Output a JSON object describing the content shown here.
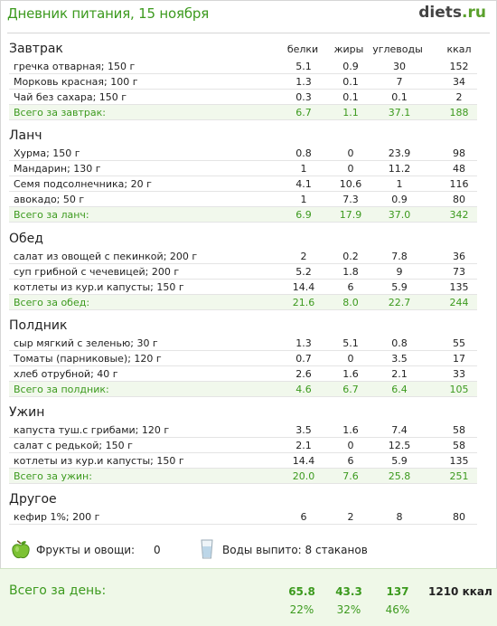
{
  "header": {
    "title": "Дневник питания, 15 ноября",
    "brand_name": "diets",
    "brand_tld": ".ru"
  },
  "columns": [
    "белки",
    "жиры",
    "углеводы",
    "ккал"
  ],
  "sections": [
    {
      "title": "Завтрак",
      "items": [
        {
          "name": "гречка отварная; 150 г",
          "protein": "5.1",
          "fat": "0.9",
          "carbs": "30",
          "kcal": "152"
        },
        {
          "name": "Морковь красная; 100 г",
          "protein": "1.3",
          "fat": "0.1",
          "carbs": "7",
          "kcal": "34"
        },
        {
          "name": "Чай без сахара; 150 г",
          "protein": "0.3",
          "fat": "0.1",
          "carbs": "0.1",
          "kcal": "2"
        }
      ],
      "total": {
        "label": "Всего за завтрак:",
        "protein": "6.7",
        "fat": "1.1",
        "carbs": "37.1",
        "kcal": "188"
      }
    },
    {
      "title": "Ланч",
      "items": [
        {
          "name": "Хурма; 150 г",
          "protein": "0.8",
          "fat": "0",
          "carbs": "23.9",
          "kcal": "98"
        },
        {
          "name": "Мандарин; 130 г",
          "protein": "1",
          "fat": "0",
          "carbs": "11.2",
          "kcal": "48"
        },
        {
          "name": "Семя подсолнечника; 20 г",
          "protein": "4.1",
          "fat": "10.6",
          "carbs": "1",
          "kcal": "116"
        },
        {
          "name": "авокадо; 50 г",
          "protein": "1",
          "fat": "7.3",
          "carbs": "0.9",
          "kcal": "80"
        }
      ],
      "total": {
        "label": "Всего за ланч:",
        "protein": "6.9",
        "fat": "17.9",
        "carbs": "37.0",
        "kcal": "342"
      }
    },
    {
      "title": "Обед",
      "items": [
        {
          "name": "салат из овощей с пекинкой; 200 г",
          "protein": "2",
          "fat": "0.2",
          "carbs": "7.8",
          "kcal": "36"
        },
        {
          "name": "суп грибной с чечевицей; 200 г",
          "protein": "5.2",
          "fat": "1.8",
          "carbs": "9",
          "kcal": "73"
        },
        {
          "name": "котлеты из кур.и капусты; 150 г",
          "protein": "14.4",
          "fat": "6",
          "carbs": "5.9",
          "kcal": "135"
        }
      ],
      "total": {
        "label": "Всего за обед:",
        "protein": "21.6",
        "fat": "8.0",
        "carbs": "22.7",
        "kcal": "244"
      }
    },
    {
      "title": "Полдник",
      "items": [
        {
          "name": "сыр мягкий с зеленью; 30 г",
          "protein": "1.3",
          "fat": "5.1",
          "carbs": "0.8",
          "kcal": "55"
        },
        {
          "name": "Томаты (парниковые); 120 г",
          "protein": "0.7",
          "fat": "0",
          "carbs": "3.5",
          "kcal": "17"
        },
        {
          "name": "хлеб отрубной; 40 г",
          "protein": "2.6",
          "fat": "1.6",
          "carbs": "2.1",
          "kcal": "33"
        }
      ],
      "total": {
        "label": "Всего за полдник:",
        "protein": "4.6",
        "fat": "6.7",
        "carbs": "6.4",
        "kcal": "105"
      }
    },
    {
      "title": "Ужин",
      "items": [
        {
          "name": "капуста туш.с грибами; 120 г",
          "protein": "3.5",
          "fat": "1.6",
          "carbs": "7.4",
          "kcal": "58"
        },
        {
          "name": "салат с редькой; 150 г",
          "protein": "2.1",
          "fat": "0",
          "carbs": "12.5",
          "kcal": "58"
        },
        {
          "name": "котлеты из кур.и капусты; 150 г",
          "protein": "14.4",
          "fat": "6",
          "carbs": "5.9",
          "kcal": "135"
        }
      ],
      "total": {
        "label": "Всего за ужин:",
        "protein": "20.0",
        "fat": "7.6",
        "carbs": "25.8",
        "kcal": "251"
      }
    },
    {
      "title": "Другое",
      "items": [
        {
          "name": "кефир 1%; 200 г",
          "protein": "6",
          "fat": "2",
          "carbs": "8",
          "kcal": "80"
        }
      ],
      "total": null
    }
  ],
  "extras": {
    "fruit_label": "Фрукты и овощи:",
    "fruit_value": "0",
    "water_label": "Воды выпито: 8 стаканов",
    "fruit_icon": "green-apple-icon",
    "water_icon": "water-glass-icon"
  },
  "day_total": {
    "label": "Всего за день:",
    "protein": "65.8",
    "fat": "43.3",
    "carbs": "137",
    "kcal": "1210 ккал",
    "protein_pct": "22%",
    "fat_pct": "32%",
    "carbs_pct": "46%"
  },
  "colors": {
    "accent_green": "#3c9a1e",
    "total_row_bg": "#f1f8ec"
  }
}
